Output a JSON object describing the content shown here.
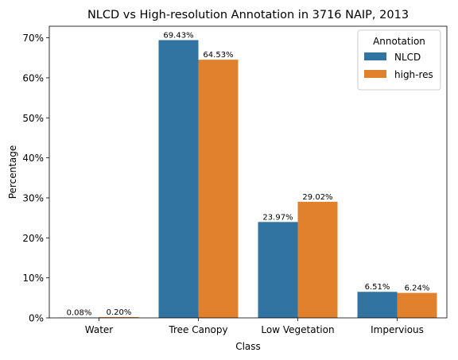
{
  "chart_data": {
    "type": "bar",
    "title": "NLCD vs High-resolution Annotation in 3716 NAIP, 2013",
    "xlabel": "Class",
    "ylabel": "Percentage",
    "categories": [
      "Water",
      "Tree Canopy",
      "Low Vegetation",
      "Impervious"
    ],
    "series": [
      {
        "name": "NLCD",
        "color": "#3274a1",
        "values": [
          0.08,
          69.43,
          23.97,
          6.51
        ],
        "labels": [
          "0.08%",
          "69.43%",
          "23.97%",
          "6.51%"
        ]
      },
      {
        "name": "high-res",
        "color": "#e1812c",
        "values": [
          0.2,
          64.53,
          29.02,
          6.24
        ],
        "labels": [
          "0.20%",
          "64.53%",
          "29.02%",
          "6.24%"
        ]
      }
    ],
    "ylim": [
      0,
      72.9
    ],
    "yticks": [
      0,
      10,
      20,
      30,
      40,
      50,
      60,
      70
    ],
    "ytick_labels": [
      "0%",
      "10%",
      "20%",
      "30%",
      "40%",
      "50%",
      "60%",
      "70%"
    ],
    "legend": {
      "title": "Annotation",
      "placement": "top-right"
    },
    "grid": false
  }
}
